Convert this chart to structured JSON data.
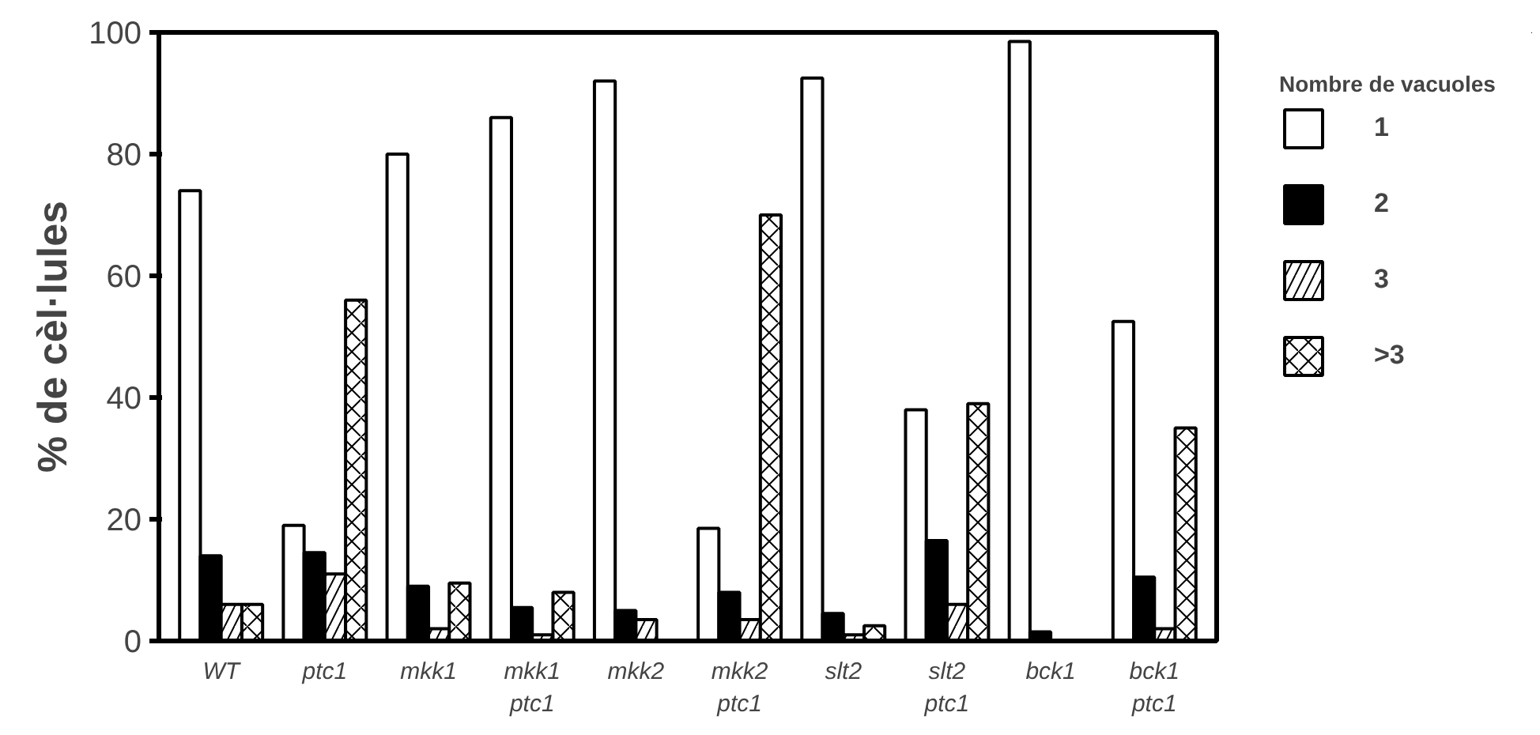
{
  "chart_data": {
    "type": "bar",
    "ylabel": "% de cèl·lules",
    "legend_title": "Nombre de vacuoles",
    "legend": "right",
    "categories": [
      "WT",
      "ptc1",
      "mkk1",
      "mkk1 ptc1",
      "mkk2",
      "mkk2 ptc1",
      "slt2",
      "slt2 ptc1",
      "bck1",
      "bck1 ptc1"
    ],
    "series": [
      {
        "name": "1",
        "color": "#ffffff",
        "values": [
          74,
          19,
          80,
          86,
          92,
          18.5,
          92.5,
          38,
          98.5,
          52.5
        ]
      },
      {
        "name": "2",
        "color": "#000000",
        "values": [
          14,
          14.5,
          9,
          5.5,
          5,
          8,
          4.5,
          16.5,
          1.5,
          10.5
        ]
      },
      {
        "name": "3",
        "color": "#ffffff",
        "values": [
          6,
          11,
          2,
          1,
          3.5,
          3.5,
          1,
          6,
          null,
          2
        ]
      },
      {
        "name": ">3",
        "color": "#ffffff",
        "values": [
          6,
          56,
          9.5,
          8,
          null,
          70,
          2.5,
          39,
          null,
          35
        ]
      }
    ],
    "ylim": [
      0,
      100
    ],
    "yticks": [
      0,
      20,
      40,
      60,
      80,
      100
    ],
    "grid": false
  }
}
